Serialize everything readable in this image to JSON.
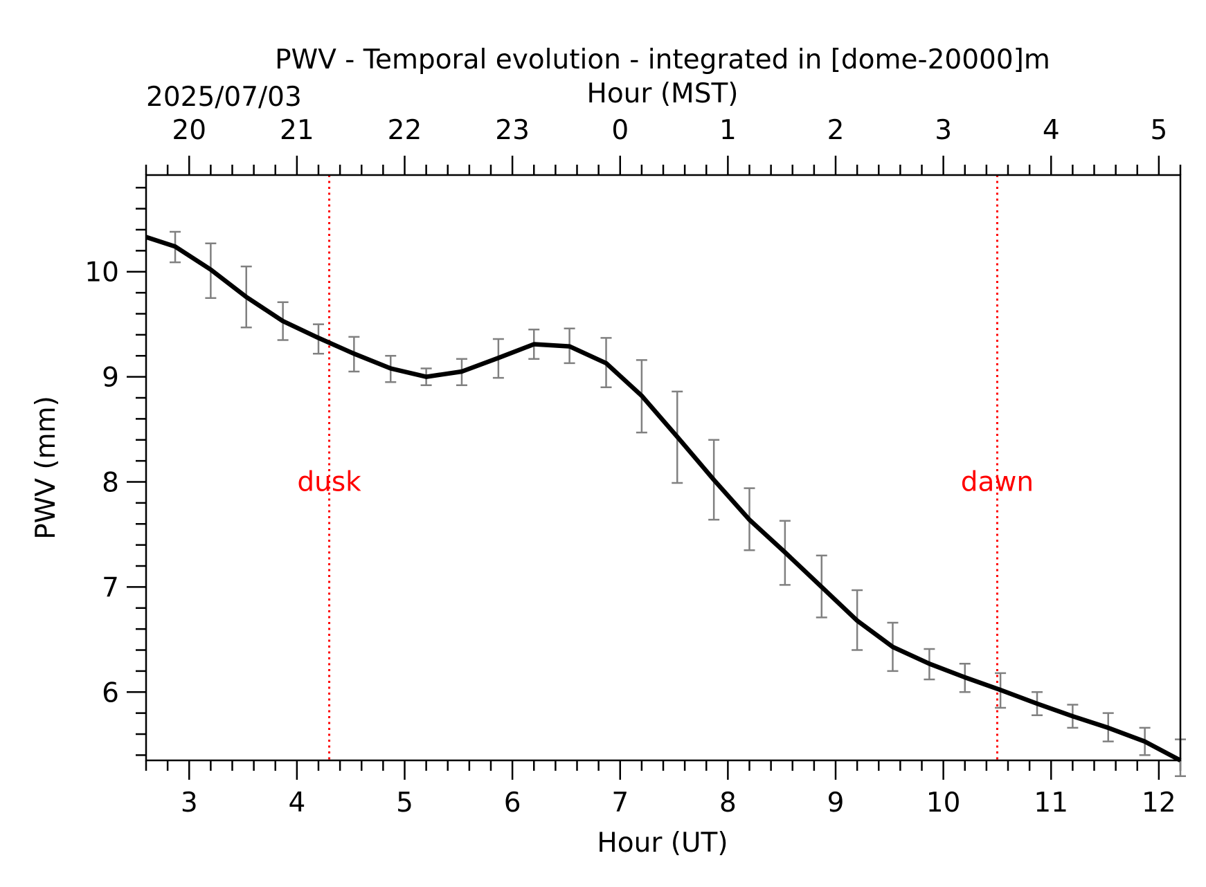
{
  "chart_data": {
    "type": "line",
    "title": "PWV - Temporal evolution - integrated in [dome-20000]m",
    "xlabel": "Hour (UT)",
    "ylabel": "PWV (mm)",
    "top_xlabel": "Hour (MST)",
    "date": "2025/07/03",
    "xlim": [
      2.6,
      12.2
    ],
    "ylim": [
      5.35,
      10.92
    ],
    "x_ticks": [
      3,
      4,
      5,
      6,
      7,
      8,
      9,
      10,
      11,
      12
    ],
    "x_tick_labels": [
      "3",
      "4",
      "5",
      "6",
      "7",
      "8",
      "9",
      "10",
      "11",
      "12"
    ],
    "y_ticks": [
      6,
      7,
      8,
      9,
      10
    ],
    "y_tick_labels": [
      "6",
      "7",
      "8",
      "9",
      "10"
    ],
    "top_ticks_ut": [
      3,
      4,
      5,
      6,
      7,
      8,
      9,
      10,
      11,
      12
    ],
    "top_tick_labels": [
      "20",
      "21",
      "22",
      "23",
      "0",
      "1",
      "2",
      "3",
      "4",
      "5"
    ],
    "grid": false,
    "series": [
      {
        "x": [
          2.6,
          2.87,
          3.2,
          3.53,
          3.87,
          4.2,
          4.53,
          4.87,
          5.2,
          5.53,
          5.87,
          6.2,
          6.53,
          6.87,
          7.2,
          7.53,
          7.87,
          8.2,
          8.53,
          8.87,
          9.2,
          9.53,
          9.87,
          10.2,
          10.53,
          10.87,
          11.2,
          11.53,
          11.87,
          12.2
        ],
        "y": [
          10.33,
          10.24,
          10.02,
          9.76,
          9.53,
          9.37,
          9.22,
          9.08,
          9.0,
          9.05,
          9.18,
          9.31,
          9.29,
          9.13,
          8.82,
          8.43,
          8.02,
          7.64,
          7.33,
          7.0,
          6.68,
          6.43,
          6.27,
          6.14,
          6.02,
          5.89,
          5.77,
          5.66,
          5.53,
          5.35
        ],
        "err_low": [
          null,
          10.09,
          9.75,
          9.47,
          9.35,
          9.22,
          9.05,
          8.95,
          8.92,
          8.92,
          8.99,
          9.17,
          9.13,
          8.9,
          8.47,
          7.99,
          7.64,
          7.35,
          7.02,
          6.71,
          6.4,
          6.2,
          6.12,
          6.0,
          5.85,
          5.78,
          5.66,
          5.53,
          5.4,
          5.2
        ],
        "err_high": [
          null,
          10.38,
          10.27,
          10.05,
          9.71,
          9.5,
          9.38,
          9.2,
          9.08,
          9.17,
          9.36,
          9.45,
          9.46,
          9.37,
          9.16,
          8.86,
          8.4,
          7.94,
          7.63,
          7.3,
          6.97,
          6.66,
          6.41,
          6.27,
          6.18,
          6.0,
          5.88,
          5.8,
          5.66,
          5.55
        ]
      }
    ],
    "colors": {
      "line": "#000000",
      "errorbar": "#808080",
      "annotation": "#ff0000"
    },
    "annotations": [
      {
        "label": "dusk",
        "x": 4.3,
        "y": 8.0
      },
      {
        "label": "dawn",
        "x": 10.5,
        "y": 8.0
      }
    ]
  }
}
